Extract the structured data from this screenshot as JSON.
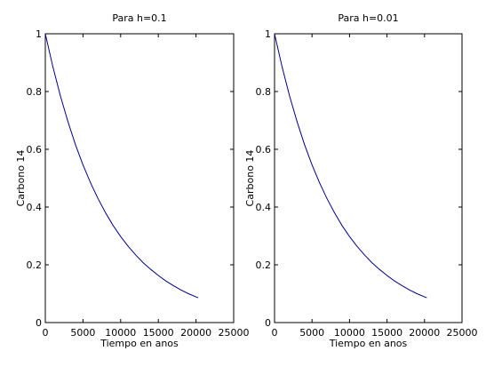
{
  "chart_data": [
    {
      "type": "line",
      "title": "Para h=0.1",
      "xlabel": "Tiempo en anos",
      "ylabel": "Carbono 14",
      "xlim": [
        0,
        25000
      ],
      "ylim": [
        0,
        1
      ],
      "xticks": [
        0,
        5000,
        10000,
        15000,
        20000,
        25000
      ],
      "yticks": [
        0,
        0.2,
        0.4,
        0.6,
        0.8,
        1
      ],
      "xtick_labels": [
        "0",
        "5000",
        "10000",
        "15000",
        "20000",
        "25000"
      ],
      "ytick_labels": [
        "0",
        "0.2",
        "0.4",
        "0.6",
        "0.8",
        "1"
      ],
      "grid": false,
      "series": [
        {
          "color": "#00008b",
          "x": [
            0,
            1000,
            2000,
            3000,
            4000,
            5000,
            6000,
            7000,
            8000,
            9000,
            10000,
            11000,
            12000,
            13000,
            14000,
            15000,
            16000,
            17000,
            18000,
            19000,
            20000,
            20300
          ],
          "y": [
            1.0,
            0.886,
            0.785,
            0.696,
            0.616,
            0.546,
            0.484,
            0.429,
            0.38,
            0.336,
            0.298,
            0.264,
            0.234,
            0.207,
            0.184,
            0.163,
            0.144,
            0.128,
            0.113,
            0.1,
            0.089,
            0.086
          ]
        }
      ]
    },
    {
      "type": "line",
      "title": "Para h=0.01",
      "xlabel": "Tiempo en anos",
      "ylabel": "Carbono 14",
      "xlim": [
        0,
        25000
      ],
      "ylim": [
        0,
        1
      ],
      "xticks": [
        0,
        5000,
        10000,
        15000,
        20000,
        25000
      ],
      "yticks": [
        0,
        0.2,
        0.4,
        0.6,
        0.8,
        1
      ],
      "xtick_labels": [
        "0",
        "5000",
        "10000",
        "15000",
        "20000",
        "25000"
      ],
      "ytick_labels": [
        "0",
        "0.2",
        "0.4",
        "0.6",
        "0.8",
        "1"
      ],
      "grid": false,
      "series": [
        {
          "color": "#00008b",
          "x": [
            0,
            1000,
            2000,
            3000,
            4000,
            5000,
            6000,
            7000,
            8000,
            9000,
            10000,
            11000,
            12000,
            13000,
            14000,
            15000,
            16000,
            17000,
            18000,
            19000,
            20000,
            20300
          ],
          "y": [
            1.0,
            0.886,
            0.785,
            0.696,
            0.616,
            0.546,
            0.484,
            0.429,
            0.38,
            0.336,
            0.298,
            0.264,
            0.234,
            0.207,
            0.184,
            0.163,
            0.144,
            0.128,
            0.113,
            0.1,
            0.089,
            0.086
          ]
        }
      ]
    }
  ]
}
